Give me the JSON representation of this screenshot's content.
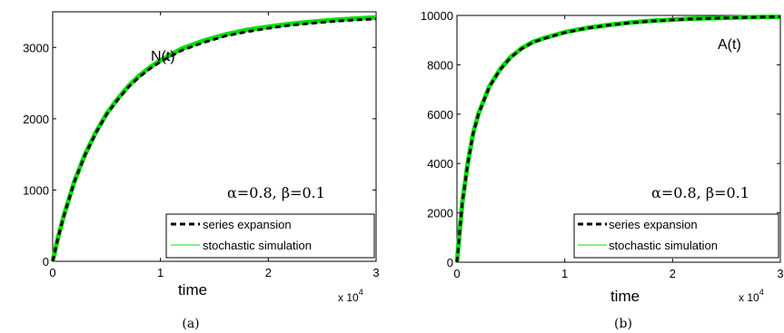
{
  "chart_data": [
    {
      "type": "line",
      "panel_label": "(a)",
      "xlabel": "time",
      "x_multiplier": "x 10",
      "x_multiplier_exp": "4",
      "xlim": [
        0,
        3
      ],
      "ylim": [
        0,
        3500
      ],
      "x_ticks": [
        "0",
        "1",
        "2",
        "3"
      ],
      "x_tick_values": [
        0,
        1,
        2,
        3
      ],
      "y_ticks": [
        "0",
        "1000",
        "2000",
        "3000"
      ],
      "y_tick_values": [
        0,
        1000,
        2000,
        3000
      ],
      "annotation": "N(t)",
      "params": "α=0.8, β=0.1",
      "legend_placement": "bottom-right",
      "series": [
        {
          "name": "series expansion",
          "color": "#000000",
          "style": "dashed",
          "x": [
            0,
            0.05,
            0.1,
            0.2,
            0.3,
            0.4,
            0.5,
            0.6,
            0.7,
            0.8,
            0.9,
            1.0,
            1.2,
            1.4,
            1.6,
            1.8,
            2.0,
            2.2,
            2.4,
            2.6,
            2.8,
            3.0
          ],
          "y": [
            0,
            330,
            620,
            1110,
            1490,
            1800,
            2060,
            2260,
            2440,
            2580,
            2700,
            2800,
            2960,
            3070,
            3160,
            3220,
            3270,
            3310,
            3340,
            3365,
            3385,
            3400
          ]
        },
        {
          "name": "stochastic simulation",
          "color": "#00e000",
          "style": "solid",
          "x": [
            0,
            0.05,
            0.1,
            0.2,
            0.3,
            0.4,
            0.5,
            0.6,
            0.7,
            0.8,
            0.9,
            1.0,
            1.2,
            1.4,
            1.6,
            1.8,
            2.0,
            2.2,
            2.4,
            2.6,
            2.8,
            3.0
          ],
          "y": [
            0,
            335,
            625,
            1115,
            1500,
            1810,
            2070,
            2275,
            2455,
            2600,
            2720,
            2820,
            2985,
            3095,
            3180,
            3245,
            3290,
            3330,
            3360,
            3385,
            3405,
            3420
          ]
        }
      ]
    },
    {
      "type": "line",
      "panel_label": "(b)",
      "xlabel": "time",
      "x_multiplier": "x 10",
      "x_multiplier_exp": "4",
      "xlim": [
        0,
        3
      ],
      "ylim": [
        0,
        10000
      ],
      "x_ticks": [
        "0",
        "1",
        "2",
        "3"
      ],
      "x_tick_values": [
        0,
        1,
        2,
        3
      ],
      "y_ticks": [
        "0",
        "2000",
        "4000",
        "6000",
        "8000",
        "10000"
      ],
      "y_tick_values": [
        0,
        2000,
        4000,
        6000,
        8000,
        10000
      ],
      "annotation": "A(t)",
      "params": "α=0.8, β=0.1",
      "legend_placement": "bottom-right",
      "series": [
        {
          "name": "series expansion",
          "color": "#000000",
          "style": "dashed",
          "x": [
            0,
            0.05,
            0.1,
            0.15,
            0.2,
            0.3,
            0.4,
            0.5,
            0.6,
            0.7,
            0.8,
            1.0,
            1.2,
            1.4,
            1.6,
            1.8,
            2.0,
            2.2,
            2.5,
            2.8,
            3.0
          ],
          "y": [
            0,
            2400,
            4000,
            5200,
            6000,
            7100,
            7800,
            8300,
            8650,
            8900,
            9050,
            9300,
            9480,
            9600,
            9700,
            9770,
            9820,
            9860,
            9900,
            9930,
            9940
          ]
        },
        {
          "name": "stochastic simulation",
          "color": "#00e000",
          "style": "solid",
          "x": [
            0,
            0.05,
            0.1,
            0.15,
            0.2,
            0.3,
            0.4,
            0.5,
            0.6,
            0.7,
            0.8,
            1.0,
            1.2,
            1.4,
            1.6,
            1.8,
            2.0,
            2.2,
            2.5,
            2.8,
            3.0
          ],
          "y": [
            0,
            2420,
            4020,
            5220,
            6020,
            7120,
            7820,
            8320,
            8670,
            8920,
            9070,
            9320,
            9490,
            9610,
            9710,
            9780,
            9830,
            9870,
            9905,
            9935,
            9945
          ]
        }
      ]
    }
  ]
}
